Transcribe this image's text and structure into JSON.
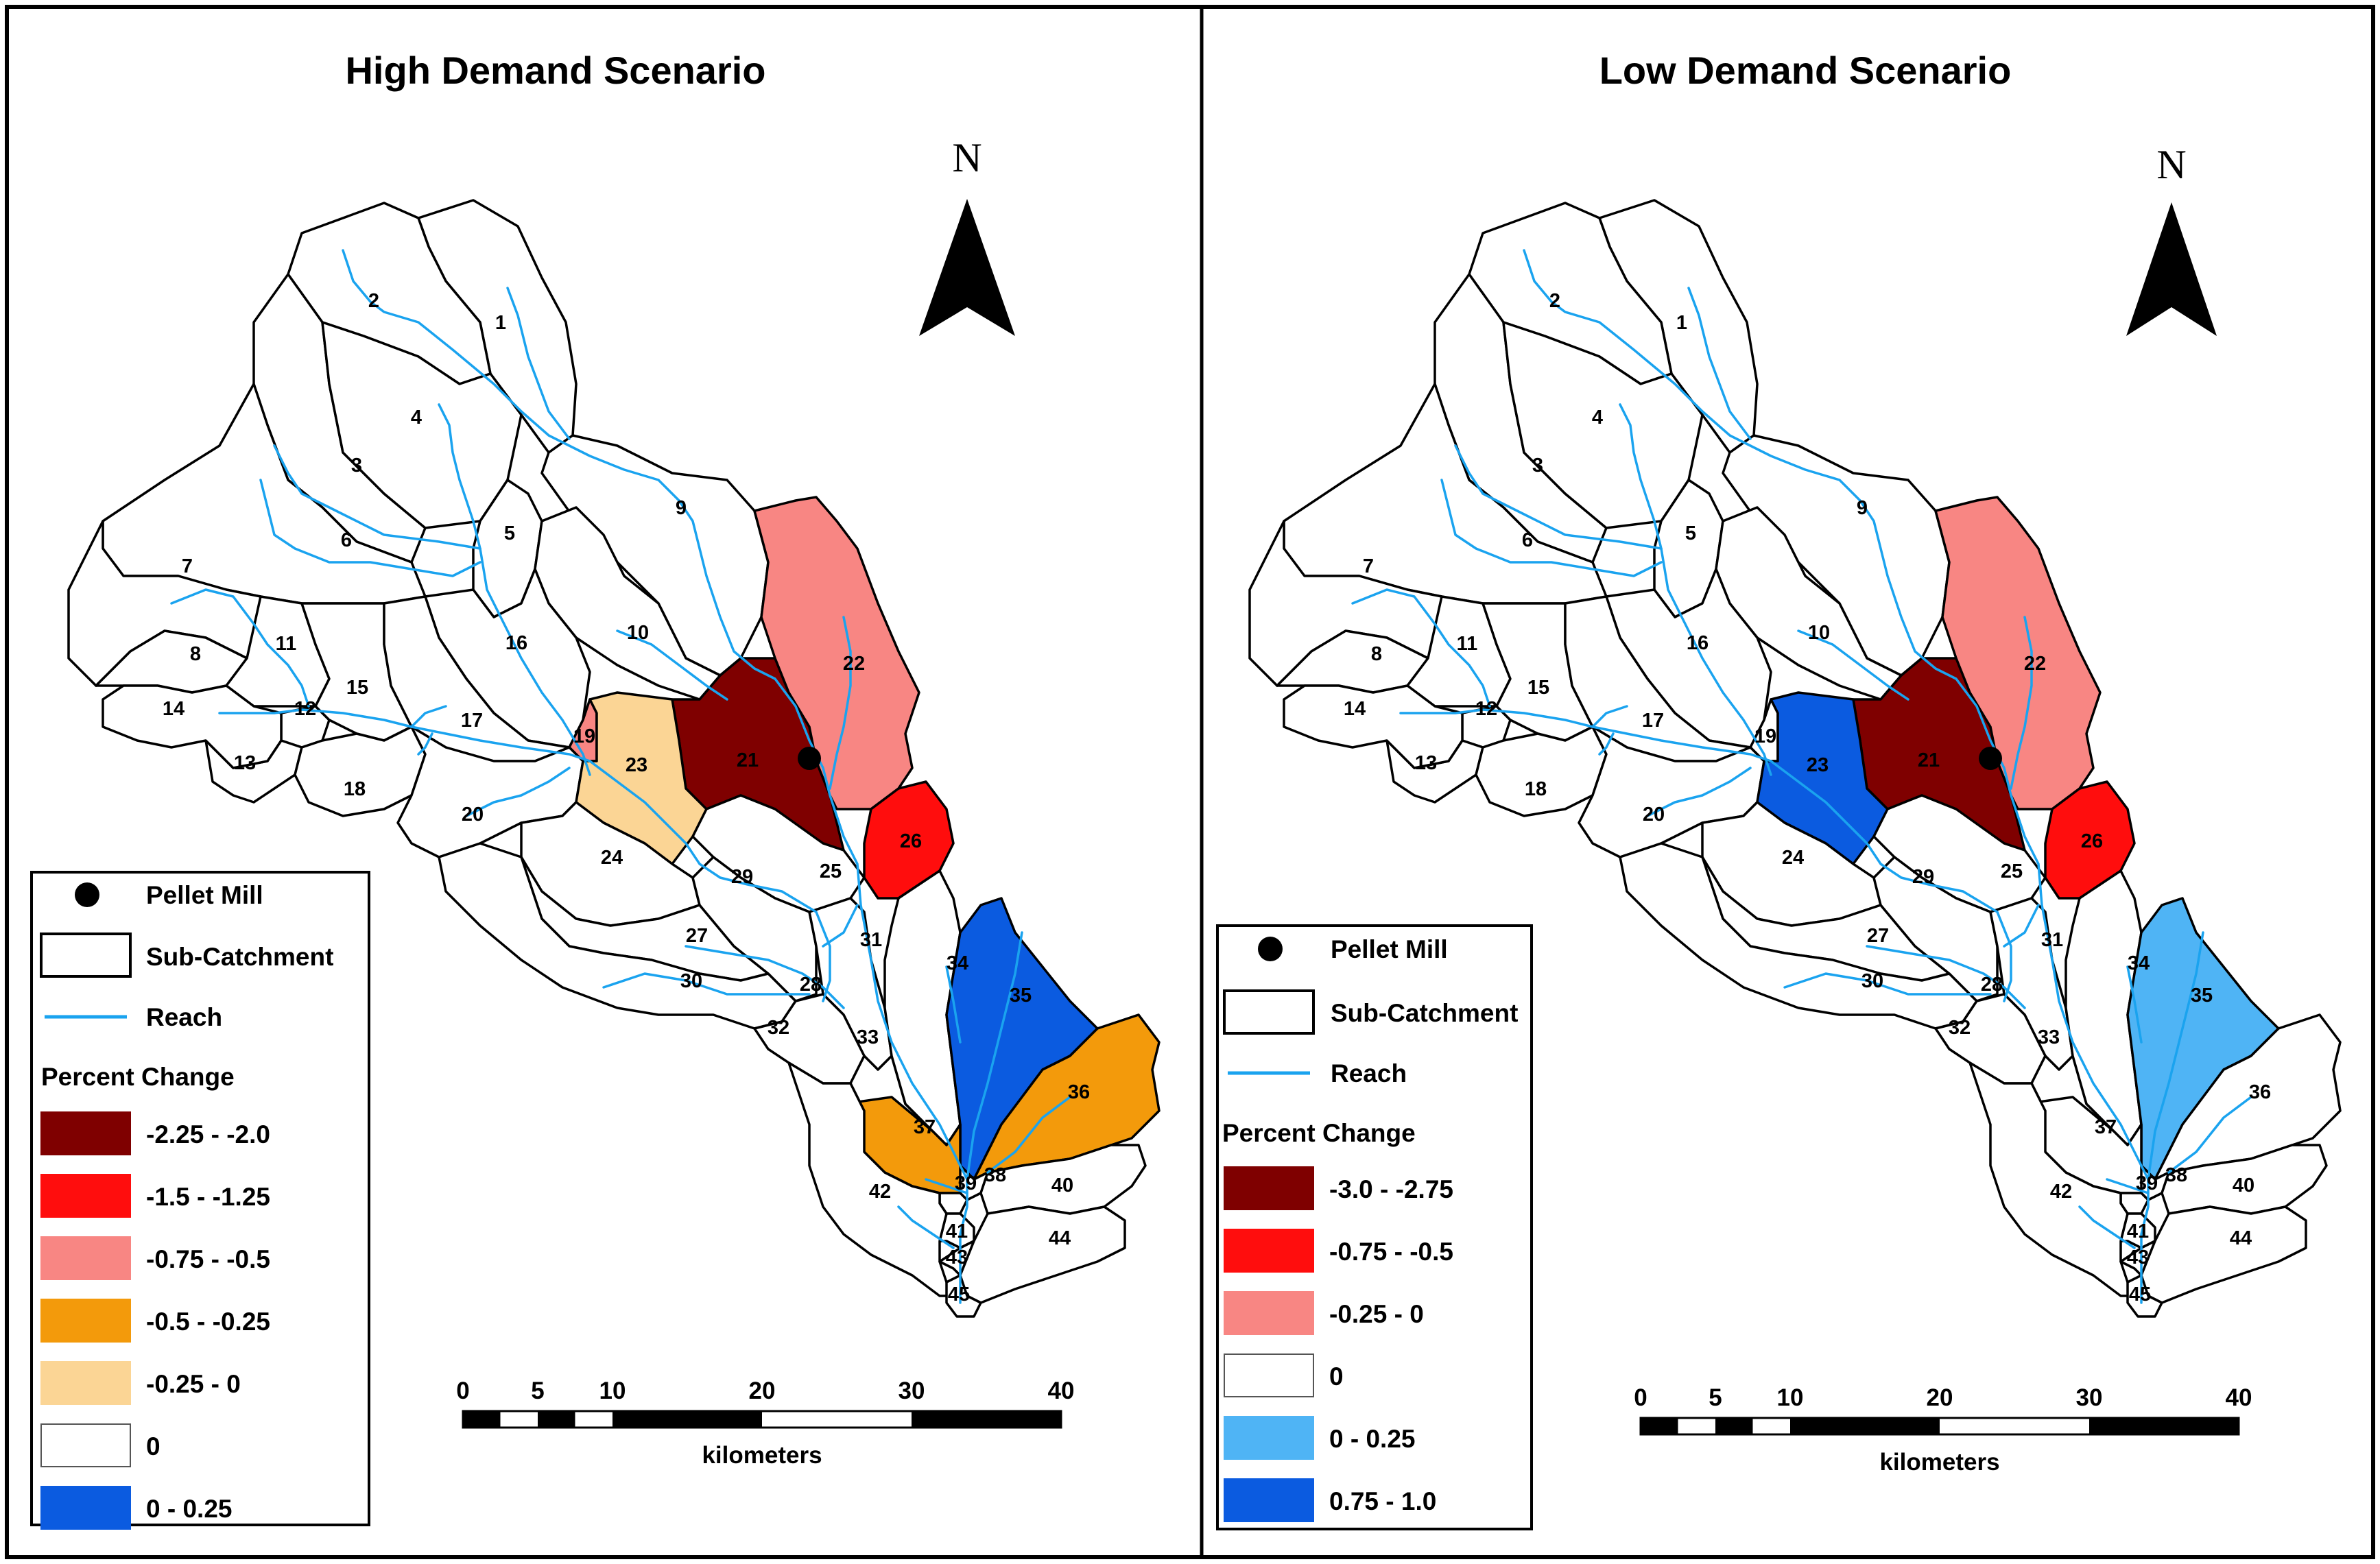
{
  "panels": [
    {
      "title": "High Demand Scenario",
      "north": "N",
      "legend": {
        "pellet_mill": "Pellet Mill",
        "sub_catchment": "Sub-Catchment",
        "reach": "Reach",
        "percent_change": "Percent Change",
        "classes": [
          {
            "label": "-2.25 - -2.0",
            "color": "#7f0000"
          },
          {
            "label": "-1.5 - -1.25",
            "color": "#ff0d0d"
          },
          {
            "label": "-0.75 - -0.5",
            "color": "#f88683"
          },
          {
            "label": "-0.5 - -0.25",
            "color": "#f39a0b"
          },
          {
            "label": "-0.25 - 0",
            "color": "#fbd595"
          },
          {
            "label": "0",
            "color": "#ffffff"
          },
          {
            "label": "0 - 0.25",
            "color": "#0b5be0"
          }
        ]
      },
      "scale": {
        "ticks": [
          "0",
          "5",
          "10",
          "20",
          "30",
          "40"
        ],
        "unit": "kilometers"
      },
      "fills": {
        "19": "#f88683",
        "21": "#7f0000",
        "22": "#f88683",
        "23": "#fbd595",
        "26": "#ff0d0d",
        "35": "#0b5be0",
        "36": "#f39a0b",
        "37": "#f39a0b"
      }
    },
    {
      "title": "Low Demand Scenario",
      "north": "N",
      "legend": {
        "pellet_mill": "Pellet Mill",
        "sub_catchment": "Sub-Catchment",
        "reach": "Reach",
        "percent_change": "Percent Change",
        "classes": [
          {
            "label": "-3.0 - -2.75",
            "color": "#7f0000"
          },
          {
            "label": "-0.75 - -0.5",
            "color": "#ff0d0d"
          },
          {
            "label": "-0.25 - 0",
            "color": "#f88683"
          },
          {
            "label": "0",
            "color": "#ffffff"
          },
          {
            "label": "0 - 0.25",
            "color": "#4fb4f5"
          },
          {
            "label": "0.75 - 1.0",
            "color": "#0b5be0"
          }
        ]
      },
      "scale": {
        "ticks": [
          "0",
          "5",
          "10",
          "20",
          "30",
          "40"
        ],
        "unit": "kilometers"
      },
      "fills": {
        "21": "#7f0000",
        "22": "#f88683",
        "23": "#0b5be0",
        "26": "#ff0d0d",
        "35": "#4fb4f5"
      }
    }
  ],
  "subcatchment_ids": [
    "1",
    "2",
    "3",
    "4",
    "5",
    "6",
    "7",
    "8",
    "9",
    "10",
    "11",
    "12",
    "13",
    "14",
    "15",
    "16",
    "17",
    "18",
    "19",
    "20",
    "21",
    "22",
    "23",
    "24",
    "25",
    "26",
    "27",
    "28",
    "29",
    "30",
    "31",
    "32",
    "33",
    "34",
    "35",
    "36",
    "37",
    "38",
    "39",
    "40",
    "41",
    "42",
    "43",
    "44",
    "45"
  ],
  "colors": {
    "reach": "#1aa3ef",
    "outline": "#000000"
  }
}
